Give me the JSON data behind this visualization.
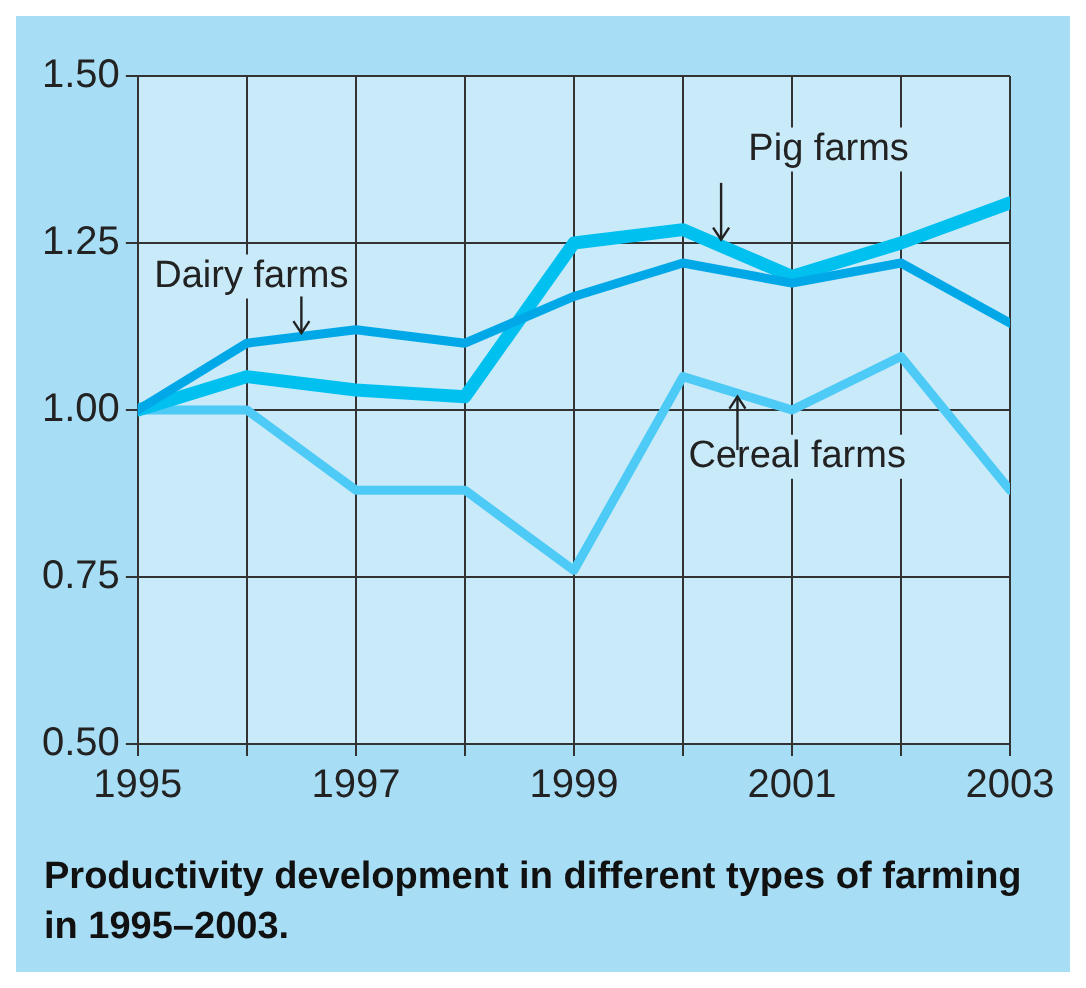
{
  "chart_data": {
    "type": "line",
    "title": "Productivity development in different types of farming in 1995–2003.",
    "x": [
      1995,
      1996,
      1997,
      1998,
      1999,
      2000,
      2001,
      2002,
      2003
    ],
    "series": [
      {
        "name": "Dairy farms",
        "color": "#00a8e8",
        "values": [
          1.0,
          1.1,
          1.12,
          1.1,
          1.17,
          1.22,
          1.19,
          1.22,
          1.13
        ]
      },
      {
        "name": "Pig farms",
        "color": "#00c0f0",
        "values": [
          1.0,
          1.05,
          1.03,
          1.02,
          1.25,
          1.27,
          1.2,
          1.25,
          1.31
        ]
      },
      {
        "name": "Cereal farms",
        "color": "#4dcaf5",
        "values": [
          1.0,
          1.0,
          0.88,
          0.88,
          0.76,
          1.05,
          1.0,
          1.08,
          0.88
        ]
      }
    ],
    "xlim": [
      1995,
      2003
    ],
    "xticks": [
      1995,
      {
        "value": 1996,
        "label": null
      },
      1997,
      {
        "value": 1998,
        "label": null
      },
      1999,
      {
        "value": 2000,
        "label": null
      },
      2001,
      {
        "value": 2002,
        "label": null
      },
      2003
    ],
    "ylim": [
      0.5,
      1.5
    ],
    "yticks": [
      {
        "value": 0.5,
        "label": "0.50"
      },
      {
        "value": 0.75,
        "label": "0.75"
      },
      {
        "value": 1.0,
        "label": "1.00"
      },
      {
        "value": 1.25,
        "label": "1.25"
      },
      {
        "value": 1.5,
        "label": "1.50"
      }
    ],
    "grid": true,
    "legend": false,
    "marker": "none",
    "line_style": "solid"
  }
}
